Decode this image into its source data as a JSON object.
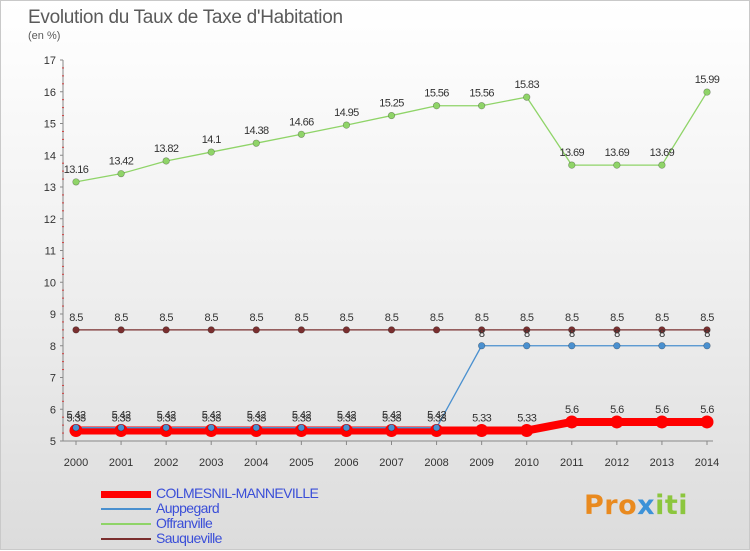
{
  "title": "Evolution du Taux de Taxe d'Habitation",
  "unit_label": "(en %)",
  "brand": {
    "part1": "Pro",
    "part2": "x",
    "part3": "iti"
  },
  "chart_data": {
    "type": "line",
    "x": [
      2000,
      2001,
      2002,
      2003,
      2004,
      2005,
      2006,
      2007,
      2008,
      2009,
      2010,
      2011,
      2012,
      2013,
      2014
    ],
    "ylim": [
      5,
      17
    ],
    "yticks": [
      5,
      6,
      7,
      8,
      9,
      10,
      11,
      12,
      13,
      14,
      15,
      16,
      17
    ],
    "grid": false,
    "legend_position": "bottom-left",
    "series": [
      {
        "name": "COLMESNIL-MANNEVILLE",
        "color": "#ff0000",
        "values": [
          5.33,
          5.33,
          5.33,
          5.33,
          5.33,
          5.33,
          5.33,
          5.33,
          5.33,
          5.33,
          5.33,
          5.6,
          5.6,
          5.6,
          5.6
        ],
        "labels": [
          "5.33",
          "5.33",
          "5.33",
          "5.33",
          "5.33",
          "5.33",
          "5.33",
          "5.33",
          "5.33",
          "5.33",
          "5.33",
          "5.6",
          "5.6",
          "5.6",
          "5.6"
        ]
      },
      {
        "name": "Auppegard",
        "color": "#4a90cf",
        "values": [
          5.42,
          5.42,
          5.42,
          5.42,
          5.42,
          5.42,
          5.42,
          5.42,
          5.42,
          8,
          8,
          8,
          8,
          8,
          8
        ],
        "labels": [
          "5.42",
          "5.42",
          "5.42",
          "5.42",
          "5.42",
          "5.42",
          "5.42",
          "5.42",
          "5.42",
          "8",
          "8",
          "8",
          "8",
          "8",
          "8"
        ]
      },
      {
        "name": "Offranville",
        "color": "#8fd468",
        "values": [
          13.16,
          13.42,
          13.82,
          14.1,
          14.38,
          14.66,
          14.95,
          15.25,
          15.56,
          15.56,
          15.83,
          13.69,
          13.69,
          13.69,
          15.99
        ],
        "labels": [
          "13.16",
          "13.42",
          "13.82",
          "14.1",
          "14.38",
          "14.66",
          "14.95",
          "15.25",
          "15.56",
          "15.56",
          "15.83",
          "13.69",
          "13.69",
          "13.69",
          "15.99"
        ]
      },
      {
        "name": "Sauqueville",
        "color": "#7a2f2f",
        "values": [
          8.5,
          8.5,
          8.5,
          8.5,
          8.5,
          8.5,
          8.5,
          8.5,
          8.5,
          8.5,
          8.5,
          8.5,
          8.5,
          8.5,
          8.5
        ],
        "labels": [
          "8.5",
          "8.5",
          "8.5",
          "8.5",
          "8.5",
          "8.5",
          "8.5",
          "8.5",
          "8.5",
          "8.5",
          "8.5",
          "8.5",
          "8.5",
          "8.5",
          "8.5"
        ]
      }
    ]
  }
}
